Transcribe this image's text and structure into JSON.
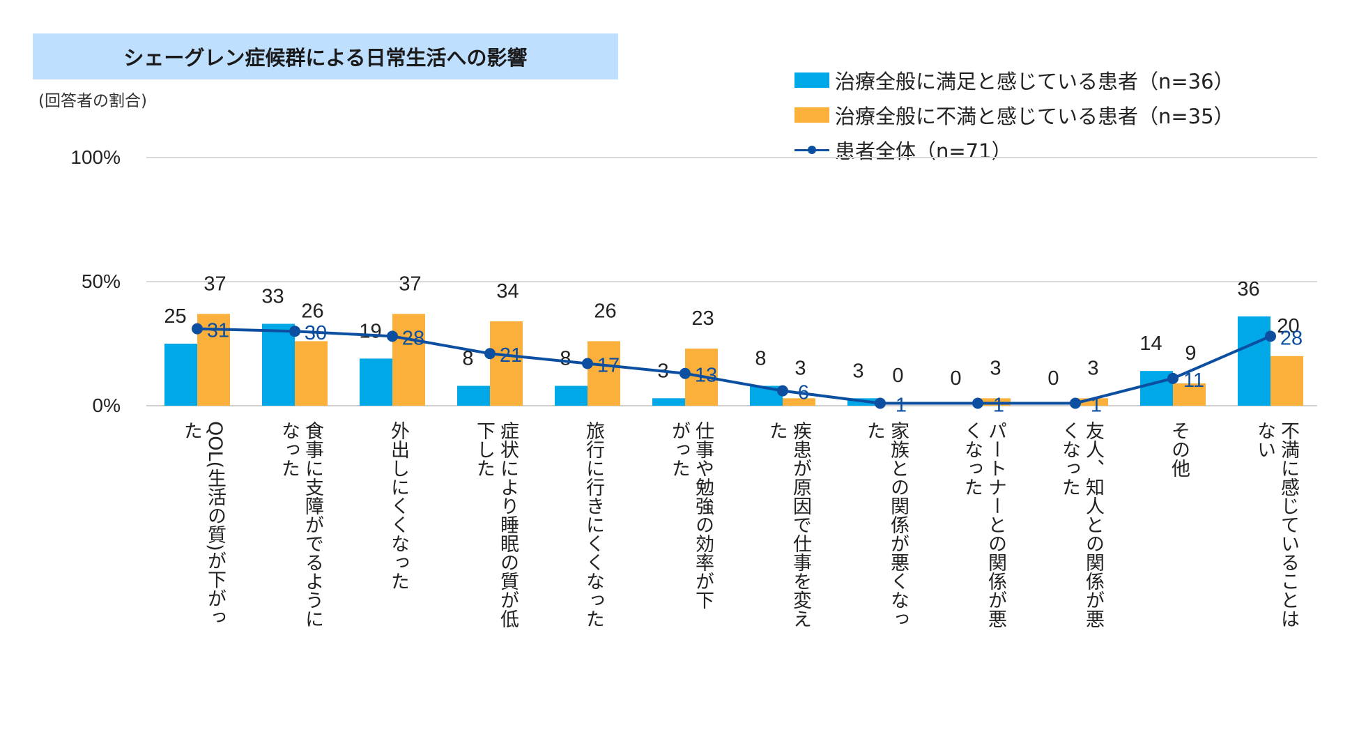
{
  "title": "シェーグレン症候群による日常生活への影響",
  "subtitle": "(回答者の割合)",
  "legend": [
    {
      "label": "治療全般に満足と感じている患者（n=36）",
      "kind": "bar",
      "color": "#00a8e8"
    },
    {
      "label": "治療全般に不満と感じている患者（n=35）",
      "kind": "bar",
      "color": "#fbb03b"
    },
    {
      "label": "患者全体（n=71）",
      "kind": "line",
      "color": "#0c4fa1"
    }
  ],
  "chart_data": {
    "type": "bar",
    "title": "シェーグレン症候群による日常生活への影響",
    "ylabel": "(回答者の割合)",
    "ylim": [
      0,
      100
    ],
    "yticks": [
      {
        "value": 0,
        "label": "0%"
      },
      {
        "value": 50,
        "label": "50%"
      },
      {
        "value": 100,
        "label": "100%"
      }
    ],
    "categories": [
      "QOL(生活の質)が下がった",
      "食事に支障がでるようになった",
      "外出しにくくなった",
      "症状により睡眠の質が低下した",
      "旅行に行きにくくなった",
      "仕事や勉強の効率が下がった",
      "疾患が原因で仕事を変えた",
      "家族との関係が悪くなった",
      "パートナーとの関係が悪くなった",
      "友人、知人との関係が悪くなった",
      "その他",
      "不満に感じていることはない"
    ],
    "category_label_columns": [
      [
        "QOL(生活の質)が下がっ",
        "た"
      ],
      [
        "食事に支障がでるように",
        "なった"
      ],
      [
        "外出しにくくなった"
      ],
      [
        "症状により睡眠の質が低",
        "下した"
      ],
      [
        "旅行に行きにくくなった"
      ],
      [
        "仕事や勉強の効率が下",
        "がった"
      ],
      [
        "疾患が原因で仕事を変え",
        "た"
      ],
      [
        "家族との関係が悪くなっ",
        "た"
      ],
      [
        "パートナーとの関係が悪",
        "くなった"
      ],
      [
        "友人、知人との関係が悪",
        "くなった"
      ],
      [
        "その他"
      ],
      [
        "不満に感じていることは",
        "ない"
      ]
    ],
    "series": [
      {
        "name": "治療全般に満足と感じている患者（n=36）",
        "type": "bar",
        "color": "#00a8e8",
        "values": [
          25,
          33,
          19,
          8,
          8,
          3,
          8,
          3,
          0,
          0,
          14,
          36
        ]
      },
      {
        "name": "治療全般に不満と感じている患者（n=35）",
        "type": "bar",
        "color": "#fbb03b",
        "values": [
          37,
          26,
          37,
          34,
          26,
          23,
          3,
          0,
          3,
          3,
          9,
          20
        ]
      },
      {
        "name": "患者全体（n=71）",
        "type": "line",
        "color": "#0c4fa1",
        "values": [
          31,
          30,
          28,
          21,
          17,
          13,
          6,
          1,
          1,
          1,
          11,
          28
        ]
      }
    ]
  }
}
